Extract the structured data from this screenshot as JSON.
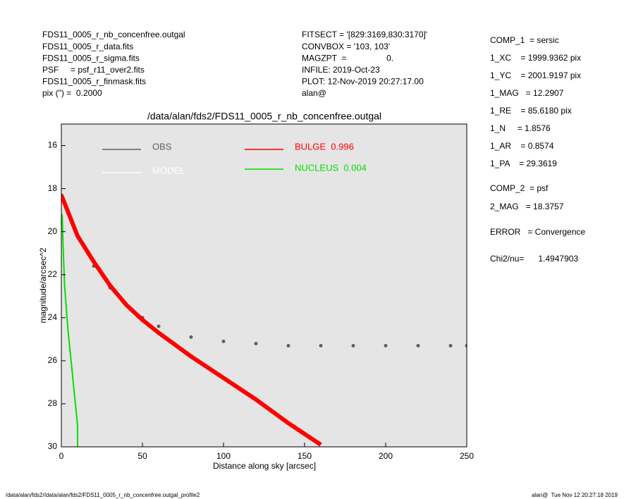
{
  "header": {
    "left": [
      "FDS11_0005_r_nb_concenfree.outgal",
      "FDS11_0005_r_data.fits",
      "FDS11_0005_r_sigma.fits",
      "PSF     = psf_r11_over2.fits",
      "FDS11_0005_r_finmask.fits",
      "pix (\") =  0.2000"
    ],
    "center": [
      "FITSECT = '[829:3169,830:3170]'",
      "CONVBOX = '103, 103'",
      "MAGZPT  =                 0.",
      "INFILE: 2019-Oct-23",
      "PLOT: 12-Nov-2019 20:27:17.00",
      "alan@"
    ],
    "right": [
      "COMP_1  = sersic",
      "1_XC    = 1999.9362 pix",
      "1_YC    = 2001.9197 pix",
      "1_MAG   = 12.2907",
      "1_RE    = 85.6180 pix",
      "1_N     = 1.8576",
      "1_AR    = 0.8574",
      "1_PA    = 29.3619",
      "COMP_2  = psf",
      "2_MAG   = 18.3757",
      "ERROR   = Convergence",
      "Chi2/nu=      1.4947903"
    ]
  },
  "footer": {
    "left": "/data/alan/fds2//data/alan/fds2/FDS11_0005_r_nb_concenfree.outgal_profile2",
    "right": "alan@  Tue Nov 12 20:27:18 2019"
  },
  "chart_data": {
    "type": "line",
    "title": "/data/alan/fds2/FDS11_0005_r_nb_concenfree.outgal",
    "x_label": "Distance along sky [arcsec]",
    "y_label": "magnitude/arcsec^2",
    "xlim": [
      0,
      250
    ],
    "ylim": [
      30,
      15
    ],
    "xticks": [
      0,
      50,
      100,
      150,
      200,
      250
    ],
    "yticks": [
      16,
      18,
      20,
      22,
      24,
      26,
      28,
      30
    ],
    "background": "#e5e5e5",
    "series": [
      {
        "name": "OBS",
        "color": "#606060",
        "marker": "dot",
        "x": [
          0,
          10,
          20,
          30,
          40,
          50,
          60,
          80,
          100,
          120,
          140,
          160,
          180,
          200,
          220,
          240,
          250
        ],
        "values": [
          18.3,
          20.2,
          21.6,
          22.6,
          23.4,
          24.0,
          24.4,
          24.9,
          25.1,
          25.2,
          25.3,
          25.3,
          25.3,
          25.3,
          25.3,
          25.3,
          25.3
        ]
      },
      {
        "name": "MODEL",
        "color": "#ffffff",
        "x": [
          0,
          10,
          20,
          30,
          40,
          50,
          60,
          80,
          100,
          120,
          140,
          160
        ],
        "values": [
          18.3,
          20.2,
          21.4,
          22.5,
          23.4,
          24.1,
          24.7,
          25.8,
          26.8,
          27.8,
          28.9,
          29.9
        ]
      },
      {
        "name": "BULGE  0.996",
        "color": "#ff0000",
        "x": [
          0,
          10,
          20,
          30,
          40,
          50,
          60,
          80,
          100,
          120,
          140,
          160
        ],
        "values": [
          18.3,
          20.2,
          21.4,
          22.5,
          23.4,
          24.1,
          24.7,
          25.8,
          26.8,
          27.8,
          28.9,
          29.9
        ]
      },
      {
        "name": "NUCLEUS  0.004",
        "color": "#00e000",
        "x": [
          0.5,
          1,
          2,
          4,
          6,
          8,
          10,
          10
        ],
        "values": [
          19.2,
          20.5,
          22.5,
          24.5,
          26,
          27.5,
          29,
          30
        ]
      }
    ]
  }
}
